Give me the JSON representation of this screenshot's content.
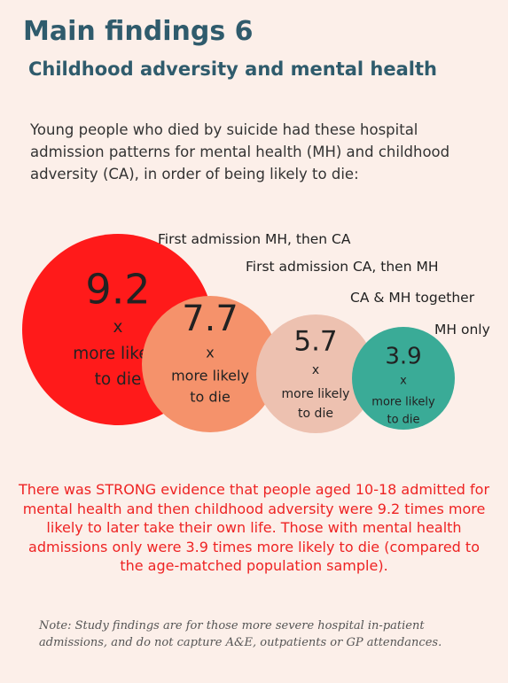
{
  "header": {
    "title": "Main findings 6",
    "subtitle": "Childhood adversity and mental health"
  },
  "intro": "Young people who died by suicide had these hospital admission patterns for mental health (MH) and childhood adversity (CA), in order of being likely to die:",
  "bubbles": [
    {
      "label": "First admission MH, then CA",
      "value": 9.2,
      "multiplier": "x",
      "caption_lines": [
        "more likely",
        "to die"
      ],
      "color": "#ff1a1a"
    },
    {
      "label": "First admission CA, then MH",
      "value": 7.7,
      "multiplier": "x",
      "caption_lines": [
        "more likely",
        "to die"
      ],
      "color": "#f5926b"
    },
    {
      "label": "CA & MH together",
      "value": 5.7,
      "multiplier": "x",
      "caption_lines": [
        "more likely",
        "to die"
      ],
      "color": "#edc1b0"
    },
    {
      "label": "MH only",
      "value": 3.9,
      "multiplier": "x",
      "caption_lines": [
        "more likely",
        "to die"
      ],
      "color": "#3aab97"
    }
  ],
  "finding": "There was STRONG evidence that people aged 10-18 admitted for mental health and then childhood adversity were 9.2 times more likely to later take their own life. Those with mental health admissions only were 3.9 times more likely to die (compared to the age-matched population sample).",
  "note": "Note: Study findings are for those more severe hospital in-patient admissions, and do not capture A&E, outpatients or GP attendances."
}
